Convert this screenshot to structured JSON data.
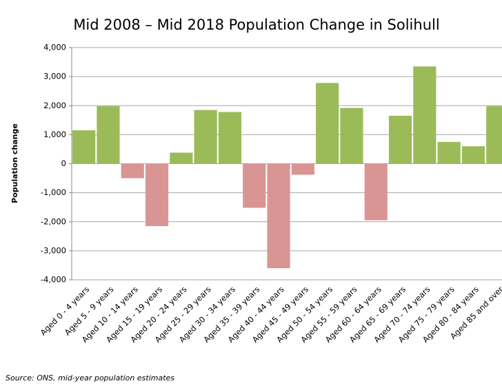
{
  "chart_data": {
    "type": "bar",
    "title": "Mid 2008 – Mid 2018 Population Change in Solihull",
    "y_label": "Population change",
    "source": "Source: ONS, mid-year population estimates",
    "categories": [
      "Aged 0 - 4 years",
      "Aged 5 - 9 years",
      "Aged 10 - 14 years",
      "Aged 15 - 19 years",
      "Aged 20 - 24 years",
      "Aged 25 - 29 years",
      "Aged 30 - 34 years",
      "Aged 35 - 39 years",
      "Aged 40 - 44 years",
      "Aged 45 - 49 years",
      "Aged 50 - 54 years",
      "Aged 55 - 59 years",
      "Aged 60 - 64 years",
      "Aged 65 - 69 years",
      "Aged 70 - 74 years",
      "Aged 75 - 79 years",
      "Aged 80 - 84 years",
      "Aged 85 and over"
    ],
    "values": [
      1150,
      1980,
      -500,
      -2150,
      380,
      1850,
      1780,
      -1520,
      -3600,
      -380,
      2780,
      1920,
      -1950,
      1650,
      3350,
      750,
      600,
      1980
    ],
    "color": "#9bbb59",
    "negative_color": "#d99594",
    "ylim": [
      -4000,
      4000
    ],
    "yticks": [
      {
        "value": -4000,
        "label": "-4,000"
      },
      {
        "value": -3000,
        "label": "-3,000"
      },
      {
        "value": -2000,
        "label": "-2,000"
      },
      {
        "value": -1000,
        "label": "-1,000"
      },
      0,
      {
        "value": 1000,
        "label": "1,000"
      },
      {
        "value": 2000,
        "label": "2,000"
      },
      {
        "value": 3000,
        "label": "3,000"
      },
      {
        "value": 4000,
        "label": "4,000"
      }
    ],
    "grid": true
  }
}
